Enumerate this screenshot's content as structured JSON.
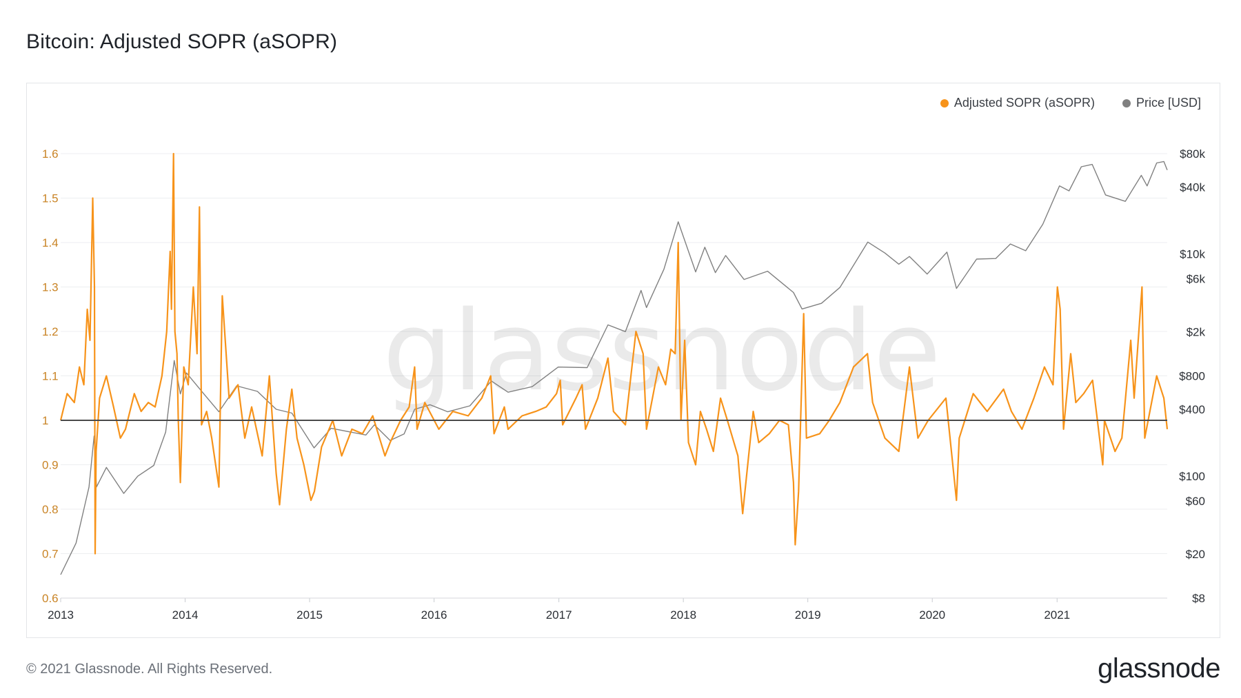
{
  "header": {
    "title": "Bitcoin: Adjusted SOPR (aSOPR)"
  },
  "legend": {
    "items": [
      {
        "label": "Adjusted SOPR (aSOPR)",
        "color": "#f7931a"
      },
      {
        "label": "Price [USD]",
        "color": "#808080"
      }
    ]
  },
  "footer": {
    "copyright": "© 2021 Glassnode. All Rights Reserved.",
    "brand": "glassnode"
  },
  "watermark": "glassnode",
  "chart_data": {
    "type": "line",
    "title": "Bitcoin: Adjusted SOPR (aSOPR)",
    "x_range": [
      "2013-01-01",
      "2021-11-20"
    ],
    "x_ticks": [
      "2013",
      "2014",
      "2015",
      "2016",
      "2017",
      "2018",
      "2019",
      "2020",
      "2021"
    ],
    "y_left": {
      "ticks": [
        "1.6",
        "1.5",
        "1.4",
        "1.3",
        "1.2",
        "1.1",
        "1",
        "0.9",
        "0.8",
        "0.7",
        "0.6"
      ],
      "range": [
        0.6,
        1.6
      ]
    },
    "y_right": {
      "scale": "log",
      "ticks": [
        "$80k",
        "$40k",
        "$10k",
        "$6k",
        "$2k",
        "$800",
        "$400",
        "$100",
        "$60",
        "$20",
        "$8"
      ],
      "range_usd": [
        8,
        80000
      ]
    },
    "reference_line": 1,
    "grid": true,
    "legend_position": "top-right",
    "series": [
      {
        "name": "Adjusted SOPR (aSOPR)",
        "axis": "left",
        "color": "#f7931a",
        "points": [
          [
            "2013-01-01",
            1.0
          ],
          [
            "2013-01-20",
            1.06
          ],
          [
            "2013-02-10",
            1.04
          ],
          [
            "2013-02-25",
            1.12
          ],
          [
            "2013-03-10",
            1.08
          ],
          [
            "2013-03-20",
            1.25
          ],
          [
            "2013-03-28",
            1.18
          ],
          [
            "2013-04-05",
            1.5
          ],
          [
            "2013-04-10",
            1.3
          ],
          [
            "2013-04-12",
            0.7
          ],
          [
            "2013-04-15",
            0.93
          ],
          [
            "2013-04-25",
            1.05
          ],
          [
            "2013-05-15",
            1.1
          ],
          [
            "2013-06-05",
            1.03
          ],
          [
            "2013-06-25",
            0.96
          ],
          [
            "2013-07-10",
            0.98
          ],
          [
            "2013-08-05",
            1.06
          ],
          [
            "2013-08-25",
            1.02
          ],
          [
            "2013-09-15",
            1.04
          ],
          [
            "2013-10-05",
            1.03
          ],
          [
            "2013-10-25",
            1.1
          ],
          [
            "2013-11-08",
            1.2
          ],
          [
            "2013-11-18",
            1.38
          ],
          [
            "2013-11-22",
            1.25
          ],
          [
            "2013-11-28",
            1.6
          ],
          [
            "2013-12-02",
            1.2
          ],
          [
            "2013-12-08",
            1.15
          ],
          [
            "2013-12-12",
            1.0
          ],
          [
            "2013-12-18",
            0.86
          ],
          [
            "2013-12-28",
            1.12
          ],
          [
            "2014-01-10",
            1.08
          ],
          [
            "2014-01-25",
            1.3
          ],
          [
            "2014-02-05",
            1.15
          ],
          [
            "2014-02-12",
            1.48
          ],
          [
            "2014-02-18",
            0.99
          ],
          [
            "2014-03-05",
            1.02
          ],
          [
            "2014-03-20",
            0.96
          ],
          [
            "2014-04-10",
            0.85
          ],
          [
            "2014-04-20",
            1.28
          ],
          [
            "2014-05-10",
            1.05
          ],
          [
            "2014-06-05",
            1.08
          ],
          [
            "2014-06-25",
            0.96
          ],
          [
            "2014-07-15",
            1.03
          ],
          [
            "2014-08-15",
            0.92
          ],
          [
            "2014-09-05",
            1.1
          ],
          [
            "2014-09-25",
            0.88
          ],
          [
            "2014-10-05",
            0.81
          ],
          [
            "2014-10-25",
            0.98
          ],
          [
            "2014-11-10",
            1.07
          ],
          [
            "2014-11-25",
            0.96
          ],
          [
            "2014-12-15",
            0.9
          ],
          [
            "2015-01-05",
            0.82
          ],
          [
            "2015-01-15",
            0.84
          ],
          [
            "2015-02-05",
            0.94
          ],
          [
            "2015-03-10",
            1.0
          ],
          [
            "2015-04-05",
            0.92
          ],
          [
            "2015-05-05",
            0.98
          ],
          [
            "2015-06-05",
            0.97
          ],
          [
            "2015-07-05",
            1.01
          ],
          [
            "2015-08-10",
            0.92
          ],
          [
            "2015-08-25",
            0.95
          ],
          [
            "2015-09-25",
            1.0
          ],
          [
            "2015-10-20",
            1.03
          ],
          [
            "2015-11-05",
            1.12
          ],
          [
            "2015-11-12",
            0.98
          ],
          [
            "2015-12-05",
            1.04
          ],
          [
            "2016-01-15",
            0.98
          ],
          [
            "2016-02-25",
            1.02
          ],
          [
            "2016-04-10",
            1.01
          ],
          [
            "2016-05-20",
            1.05
          ],
          [
            "2016-06-15",
            1.1
          ],
          [
            "2016-06-25",
            0.97
          ],
          [
            "2016-07-25",
            1.03
          ],
          [
            "2016-08-05",
            0.98
          ],
          [
            "2016-09-15",
            1.01
          ],
          [
            "2016-10-25",
            1.02
          ],
          [
            "2016-11-25",
            1.03
          ],
          [
            "2016-12-25",
            1.06
          ],
          [
            "2017-01-05",
            1.09
          ],
          [
            "2017-01-12",
            0.99
          ],
          [
            "2017-02-20",
            1.05
          ],
          [
            "2017-03-10",
            1.08
          ],
          [
            "2017-03-20",
            0.98
          ],
          [
            "2017-04-25",
            1.05
          ],
          [
            "2017-05-25",
            1.14
          ],
          [
            "2017-06-10",
            1.02
          ],
          [
            "2017-07-15",
            0.99
          ],
          [
            "2017-08-15",
            1.2
          ],
          [
            "2017-09-05",
            1.15
          ],
          [
            "2017-09-15",
            0.98
          ],
          [
            "2017-10-20",
            1.12
          ],
          [
            "2017-11-10",
            1.08
          ],
          [
            "2017-11-25",
            1.16
          ],
          [
            "2017-12-08",
            1.15
          ],
          [
            "2017-12-17",
            1.4
          ],
          [
            "2017-12-25",
            1.0
          ],
          [
            "2018-01-05",
            1.18
          ],
          [
            "2018-01-16",
            0.95
          ],
          [
            "2018-02-06",
            0.9
          ],
          [
            "2018-02-20",
            1.02
          ],
          [
            "2018-03-10",
            0.98
          ],
          [
            "2018-03-30",
            0.93
          ],
          [
            "2018-04-20",
            1.05
          ],
          [
            "2018-05-10",
            1.0
          ],
          [
            "2018-06-10",
            0.92
          ],
          [
            "2018-06-24",
            0.79
          ],
          [
            "2018-07-25",
            1.02
          ],
          [
            "2018-08-10",
            0.95
          ],
          [
            "2018-09-10",
            0.97
          ],
          [
            "2018-10-10",
            1.0
          ],
          [
            "2018-11-05",
            0.99
          ],
          [
            "2018-11-20",
            0.86
          ],
          [
            "2018-11-25",
            0.72
          ],
          [
            "2018-12-05",
            0.84
          ],
          [
            "2018-12-20",
            1.24
          ],
          [
            "2018-12-28",
            0.96
          ],
          [
            "2019-02-05",
            0.97
          ],
          [
            "2019-03-05",
            1.0
          ],
          [
            "2019-04-05",
            1.04
          ],
          [
            "2019-05-15",
            1.12
          ],
          [
            "2019-06-25",
            1.15
          ],
          [
            "2019-07-10",
            1.04
          ],
          [
            "2019-08-15",
            0.96
          ],
          [
            "2019-09-25",
            0.93
          ],
          [
            "2019-10-26",
            1.12
          ],
          [
            "2019-11-20",
            0.96
          ],
          [
            "2019-12-20",
            1.0
          ],
          [
            "2020-02-10",
            1.05
          ],
          [
            "2020-03-12",
            0.82
          ],
          [
            "2020-03-20",
            0.96
          ],
          [
            "2020-04-30",
            1.06
          ],
          [
            "2020-06-10",
            1.02
          ],
          [
            "2020-07-28",
            1.07
          ],
          [
            "2020-08-20",
            1.02
          ],
          [
            "2020-09-20",
            0.98
          ],
          [
            "2020-10-25",
            1.05
          ],
          [
            "2020-11-25",
            1.12
          ],
          [
            "2020-12-20",
            1.08
          ],
          [
            "2021-01-02",
            1.3
          ],
          [
            "2021-01-10",
            1.25
          ],
          [
            "2021-01-20",
            0.98
          ],
          [
            "2021-02-10",
            1.15
          ],
          [
            "2021-02-25",
            1.04
          ],
          [
            "2021-03-20",
            1.06
          ],
          [
            "2021-04-15",
            1.09
          ],
          [
            "2021-05-15",
            0.9
          ],
          [
            "2021-05-20",
            1.0
          ],
          [
            "2021-06-20",
            0.93
          ],
          [
            "2021-07-10",
            0.96
          ],
          [
            "2021-08-05",
            1.18
          ],
          [
            "2021-08-15",
            1.05
          ],
          [
            "2021-09-07",
            1.3
          ],
          [
            "2021-09-15",
            0.96
          ],
          [
            "2021-10-20",
            1.1
          ],
          [
            "2021-11-10",
            1.05
          ],
          [
            "2021-11-20",
            0.98
          ]
        ]
      },
      {
        "name": "Price [USD]",
        "axis": "right",
        "color": "#808080",
        "points": [
          [
            "2013-01-01",
            13
          ],
          [
            "2013-02-15",
            25
          ],
          [
            "2013-03-25",
            80
          ],
          [
            "2013-04-09",
            230
          ],
          [
            "2013-04-16",
            80
          ],
          [
            "2013-05-15",
            120
          ],
          [
            "2013-07-05",
            70
          ],
          [
            "2013-08-15",
            100
          ],
          [
            "2013-10-01",
            125
          ],
          [
            "2013-11-05",
            250
          ],
          [
            "2013-11-30",
            1100
          ],
          [
            "2013-12-18",
            550
          ],
          [
            "2014-01-05",
            850
          ],
          [
            "2014-02-25",
            550
          ],
          [
            "2014-04-10",
            380
          ],
          [
            "2014-06-01",
            650
          ],
          [
            "2014-08-01",
            580
          ],
          [
            "2014-09-25",
            400
          ],
          [
            "2014-11-10",
            370
          ],
          [
            "2015-01-14",
            180
          ],
          [
            "2015-03-05",
            270
          ],
          [
            "2015-06-15",
            235
          ],
          [
            "2015-07-10",
            290
          ],
          [
            "2015-08-25",
            210
          ],
          [
            "2015-10-05",
            240
          ],
          [
            "2015-11-05",
            400
          ],
          [
            "2015-12-20",
            440
          ],
          [
            "2016-02-10",
            380
          ],
          [
            "2016-04-15",
            430
          ],
          [
            "2016-06-17",
            720
          ],
          [
            "2016-08-05",
            570
          ],
          [
            "2016-10-15",
            640
          ],
          [
            "2016-12-30",
            960
          ],
          [
            "2017-03-25",
            950
          ],
          [
            "2017-05-25",
            2300
          ],
          [
            "2017-07-15",
            2000
          ],
          [
            "2017-08-30",
            4700
          ],
          [
            "2017-09-15",
            3300
          ],
          [
            "2017-11-05",
            7300
          ],
          [
            "2017-12-17",
            19500
          ],
          [
            "2018-02-06",
            6900
          ],
          [
            "2018-03-05",
            11500
          ],
          [
            "2018-04-05",
            6800
          ],
          [
            "2018-05-05",
            9700
          ],
          [
            "2018-06-28",
            5900
          ],
          [
            "2018-09-05",
            7000
          ],
          [
            "2018-11-20",
            4500
          ],
          [
            "2018-12-15",
            3200
          ],
          [
            "2019-02-10",
            3600
          ],
          [
            "2019-04-05",
            5000
          ],
          [
            "2019-06-26",
            12800
          ],
          [
            "2019-08-15",
            10200
          ],
          [
            "2019-09-25",
            8100
          ],
          [
            "2019-10-26",
            9500
          ],
          [
            "2019-12-17",
            6600
          ],
          [
            "2020-02-13",
            10400
          ],
          [
            "2020-03-12",
            4900
          ],
          [
            "2020-05-10",
            9000
          ],
          [
            "2020-07-05",
            9100
          ],
          [
            "2020-08-17",
            12300
          ],
          [
            "2020-10-01",
            10700
          ],
          [
            "2020-11-20",
            18500
          ],
          [
            "2021-01-08",
            41000
          ],
          [
            "2021-02-05",
            37000
          ],
          [
            "2021-03-13",
            61000
          ],
          [
            "2021-04-14",
            64000
          ],
          [
            "2021-05-23",
            34000
          ],
          [
            "2021-07-20",
            29800
          ],
          [
            "2021-09-05",
            51000
          ],
          [
            "2021-09-22",
            41000
          ],
          [
            "2021-10-20",
            66000
          ],
          [
            "2021-11-10",
            68000
          ],
          [
            "2021-11-20",
            57000
          ]
        ]
      }
    ]
  }
}
